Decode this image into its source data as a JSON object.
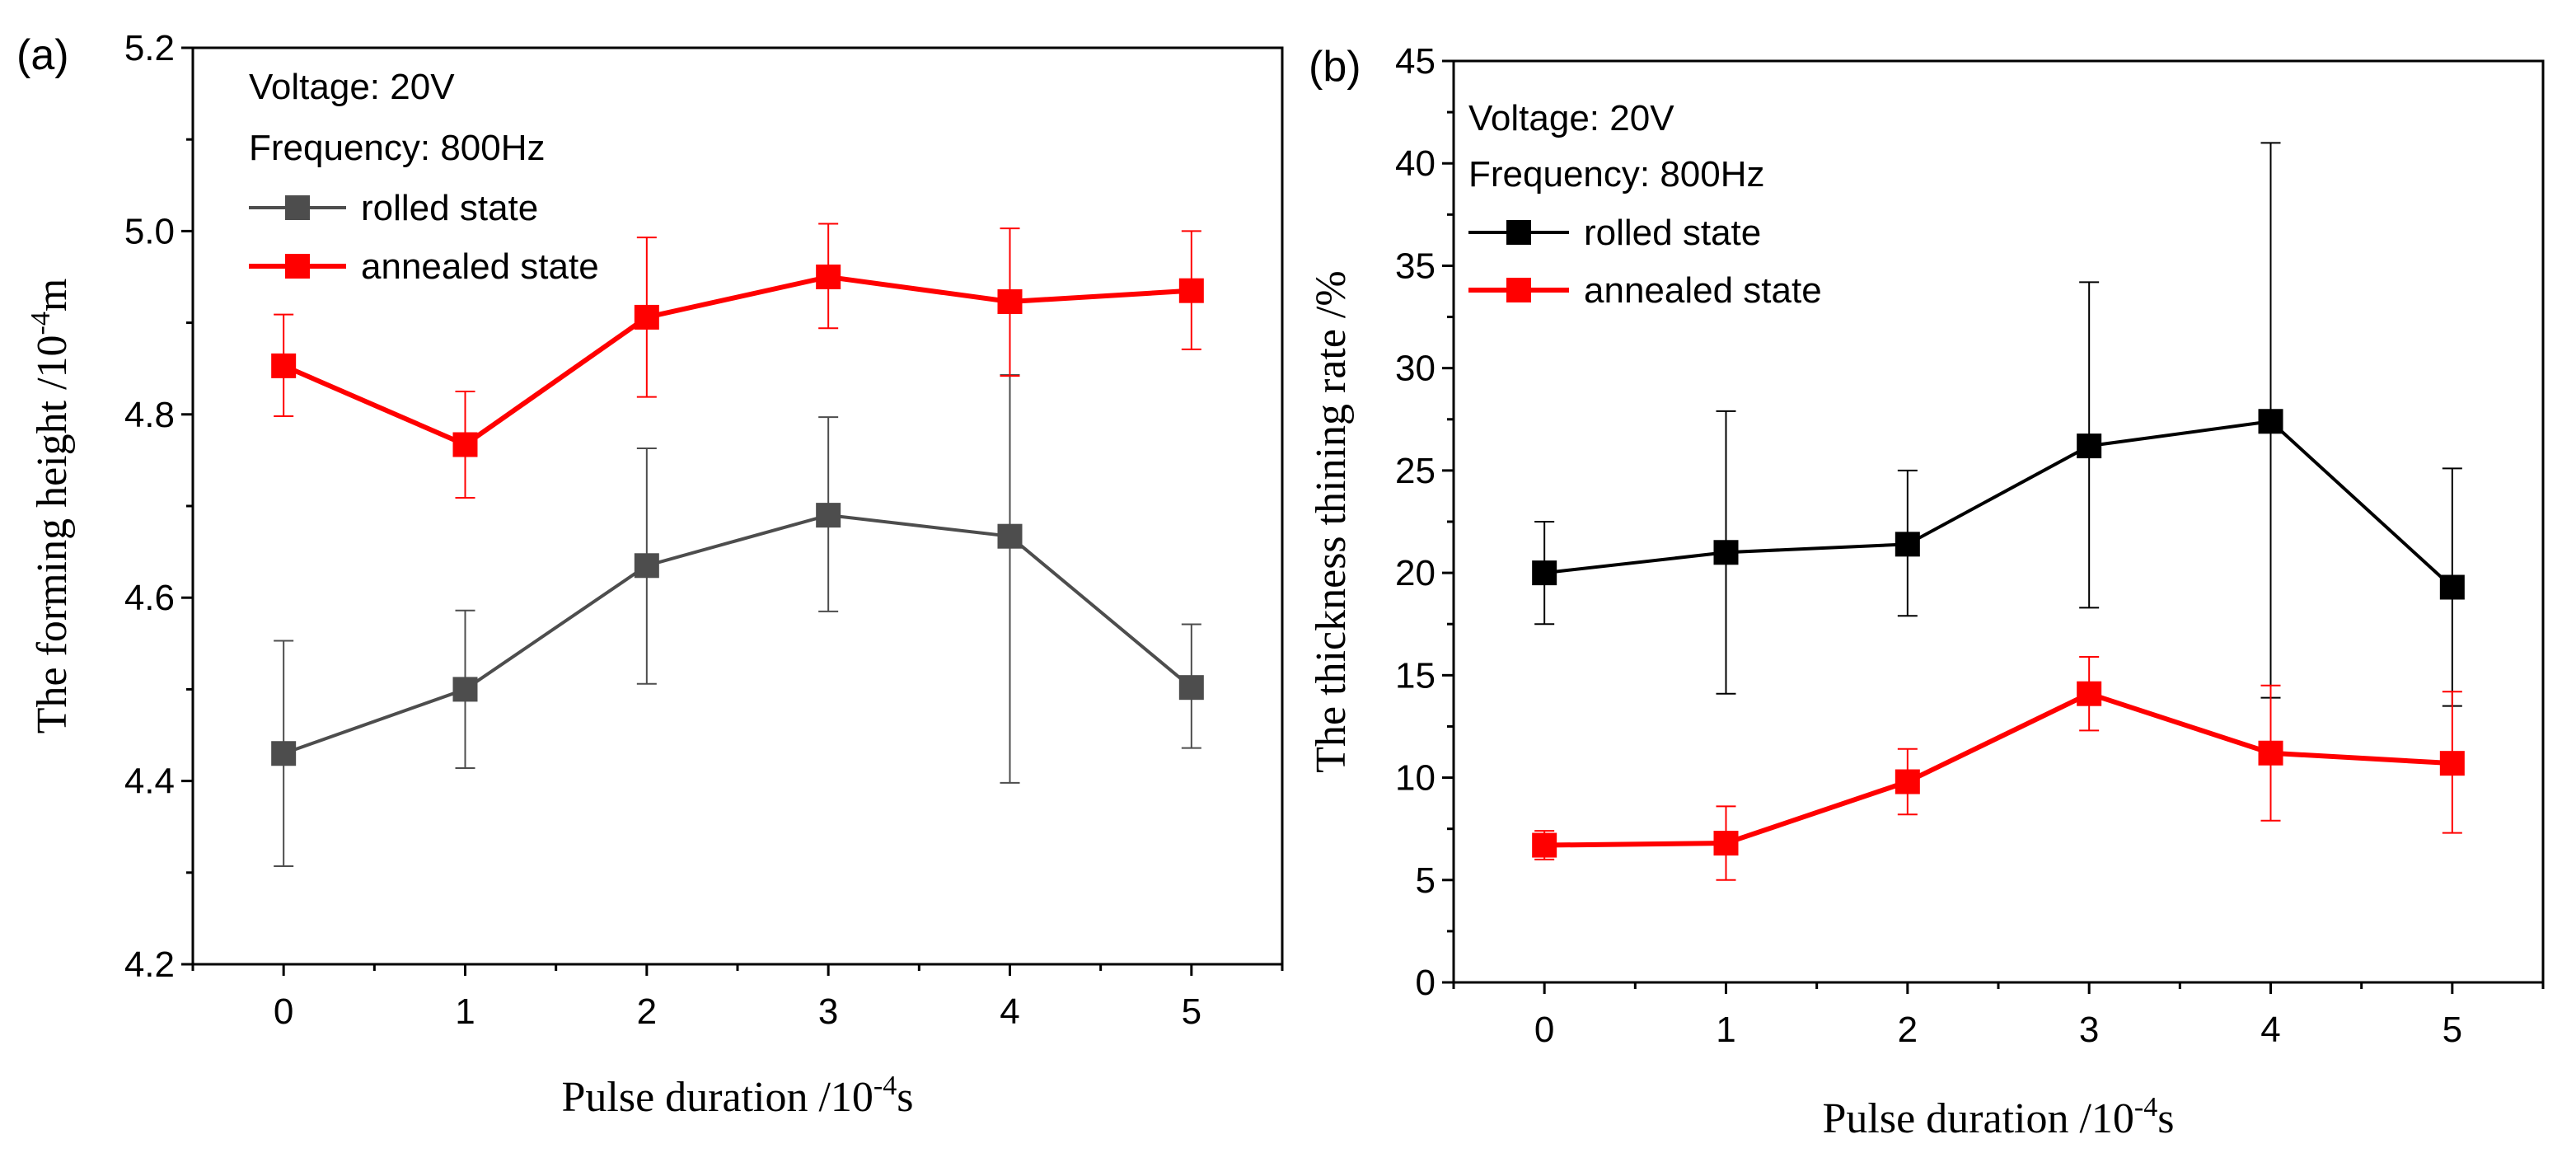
{
  "chart_data": [
    {
      "type": "line",
      "panel_label": "(a)",
      "xlabel_main": "Pulse duration /10",
      "xlabel_sup": "-4",
      "xlabel_end": "s",
      "ylabel_main": "The forming height /10",
      "ylabel_sup": "-4",
      "ylabel_end": "m",
      "annotations": [
        "Voltage: 20V",
        "Frequency: 800Hz"
      ],
      "x": [
        0,
        1,
        2,
        3,
        4,
        5
      ],
      "xlim": [
        -0.5,
        5.5
      ],
      "ylim": [
        4.2,
        5.2
      ],
      "xticks": [
        "0",
        "1",
        "2",
        "3",
        "4",
        "5"
      ],
      "yticks": [
        "4.2",
        "4.4",
        "4.6",
        "4.8",
        "5.0",
        "5.2"
      ],
      "ytick_values": [
        4.2,
        4.4,
        4.6,
        4.8,
        5.0,
        5.2
      ],
      "series": [
        {
          "name": "rolled state",
          "color": "#4d4d4d",
          "values": [
            4.43,
            4.5,
            4.635,
            4.69,
            4.667,
            4.502
          ],
          "err_low": [
            4.307,
            4.414,
            4.506,
            4.585,
            4.398,
            4.436
          ],
          "err_high": [
            4.553,
            4.586,
            4.763,
            4.797,
            4.843,
            4.571
          ]
        },
        {
          "name": "annealed state",
          "color": "#ff0000",
          "values": [
            4.853,
            4.767,
            4.906,
            4.95,
            4.923,
            4.935
          ],
          "err_low": [
            4.798,
            4.709,
            4.819,
            4.894,
            4.842,
            4.871
          ],
          "err_high": [
            4.909,
            4.825,
            4.993,
            5.008,
            5.003,
            5.0
          ]
        }
      ]
    },
    {
      "type": "line",
      "panel_label": "(b)",
      "xlabel_main": "Pulse duration /10",
      "xlabel_sup": "-4",
      "xlabel_end": "s",
      "ylabel_main": "The thickness thining rate /%",
      "annotations": [
        "Voltage: 20V",
        "Frequency: 800Hz"
      ],
      "x": [
        0,
        1,
        2,
        3,
        4,
        5
      ],
      "xlim": [
        -0.5,
        5.5
      ],
      "ylim": [
        0,
        45
      ],
      "xticks": [
        "0",
        "1",
        "2",
        "3",
        "4",
        "5"
      ],
      "yticks": [
        "0",
        "5",
        "10",
        "15",
        "20",
        "25",
        "30",
        "35",
        "40",
        "45"
      ],
      "ytick_values": [
        0,
        5,
        10,
        15,
        20,
        25,
        30,
        35,
        40,
        45
      ],
      "series": [
        {
          "name": "rolled state",
          "color": "#000000",
          "values": [
            20.0,
            21.0,
            21.4,
            26.2,
            27.4,
            19.3
          ],
          "err_low": [
            17.5,
            14.1,
            17.9,
            18.3,
            13.9,
            13.5
          ],
          "err_high": [
            22.5,
            27.9,
            25.0,
            34.2,
            41.0,
            25.1
          ]
        },
        {
          "name": "annealed state",
          "color": "#ff0000",
          "values": [
            6.7,
            6.8,
            9.8,
            14.1,
            11.2,
            10.7
          ],
          "err_low": [
            6.0,
            5.0,
            8.2,
            12.3,
            7.9,
            7.3
          ],
          "err_high": [
            7.4,
            8.6,
            11.4,
            15.9,
            14.5,
            14.2
          ]
        }
      ]
    }
  ]
}
